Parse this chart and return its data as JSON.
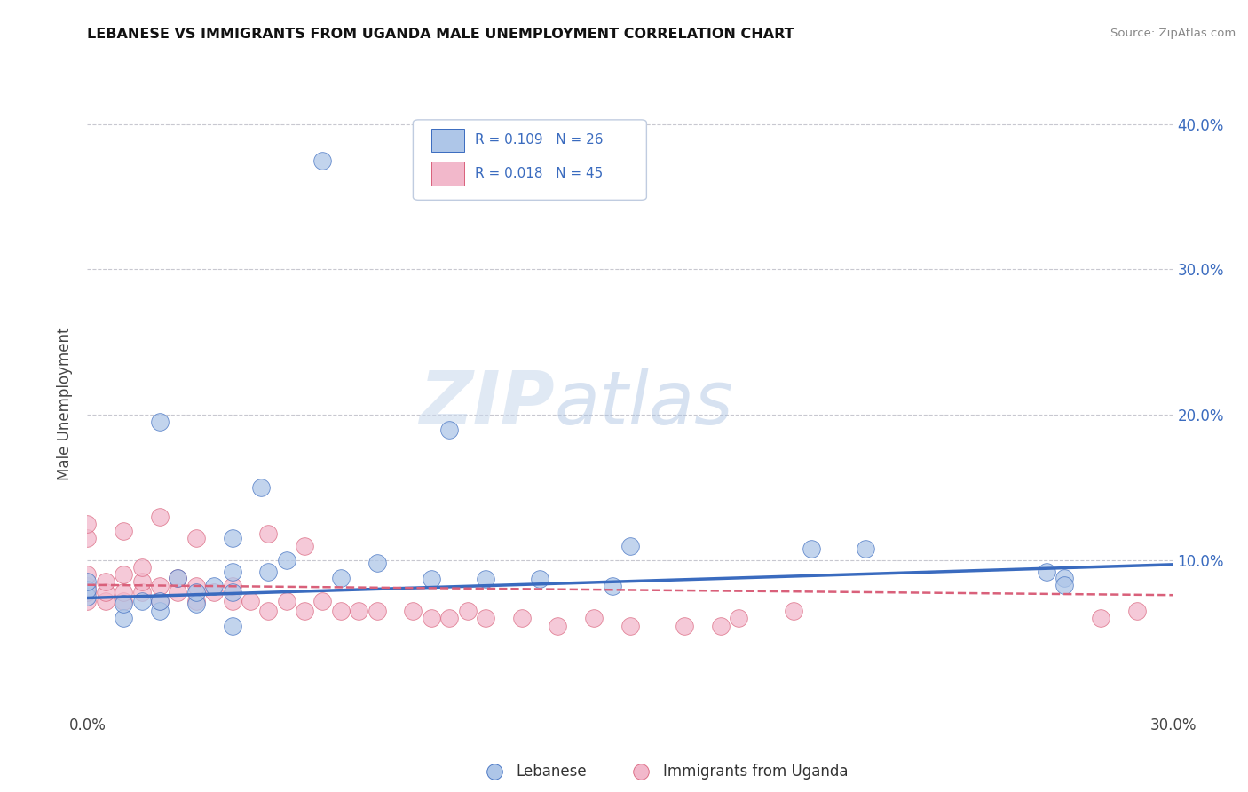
{
  "title": "LEBANESE VS IMMIGRANTS FROM UGANDA MALE UNEMPLOYMENT CORRELATION CHART",
  "source": "Source: ZipAtlas.com",
  "ylabel": "Male Unemployment",
  "xlim": [
    0.0,
    0.3
  ],
  "ylim": [
    -0.005,
    0.42
  ],
  "ytick_vals": [
    0.1,
    0.2,
    0.3,
    0.4
  ],
  "ytick_labels": [
    "10.0%",
    "20.0%",
    "30.0%",
    "40.0%"
  ],
  "watermark": "ZIPatlas",
  "color_lebanese": "#aec6e8",
  "color_uganda": "#f2b8cb",
  "color_line_lebanese": "#3a6bbf",
  "color_line_uganda": "#d9607a",
  "lebanese_x": [
    0.0,
    0.0,
    0.0,
    0.01,
    0.01,
    0.015,
    0.02,
    0.02,
    0.025,
    0.03,
    0.03,
    0.035,
    0.04,
    0.04,
    0.048,
    0.05,
    0.055,
    0.07,
    0.08,
    0.095,
    0.1,
    0.11,
    0.125,
    0.145,
    0.2,
    0.265
  ],
  "lebanese_y": [
    0.075,
    0.08,
    0.085,
    0.06,
    0.07,
    0.072,
    0.065,
    0.072,
    0.088,
    0.07,
    0.078,
    0.082,
    0.078,
    0.092,
    0.15,
    0.092,
    0.1,
    0.088,
    0.098,
    0.087,
    0.19,
    0.087,
    0.087,
    0.082,
    0.108,
    0.092
  ],
  "uganda_x": [
    0.0,
    0.0,
    0.0,
    0.0,
    0.005,
    0.005,
    0.005,
    0.01,
    0.01,
    0.01,
    0.015,
    0.015,
    0.015,
    0.02,
    0.02,
    0.025,
    0.025,
    0.03,
    0.03,
    0.035,
    0.04,
    0.04,
    0.045,
    0.05,
    0.055,
    0.06,
    0.065,
    0.07,
    0.075,
    0.08,
    0.09,
    0.095,
    0.1,
    0.105,
    0.11,
    0.12,
    0.13,
    0.14,
    0.15,
    0.165,
    0.175,
    0.18,
    0.195,
    0.28,
    0.29
  ],
  "uganda_y": [
    0.072,
    0.078,
    0.082,
    0.09,
    0.072,
    0.078,
    0.085,
    0.072,
    0.078,
    0.09,
    0.078,
    0.085,
    0.095,
    0.072,
    0.082,
    0.078,
    0.088,
    0.072,
    0.082,
    0.078,
    0.072,
    0.082,
    0.072,
    0.065,
    0.072,
    0.065,
    0.072,
    0.065,
    0.065,
    0.065,
    0.065,
    0.06,
    0.06,
    0.065,
    0.06,
    0.06,
    0.055,
    0.06,
    0.055,
    0.055,
    0.055,
    0.06,
    0.065,
    0.06,
    0.065
  ],
  "lebanese_extra_x": [
    0.065,
    0.02,
    0.04,
    0.04,
    0.15,
    0.215,
    0.27,
    0.27
  ],
  "lebanese_extra_y": [
    0.375,
    0.195,
    0.115,
    0.055,
    0.11,
    0.108,
    0.088,
    0.083
  ],
  "uganda_extra_x": [
    0.0,
    0.0,
    0.01,
    0.02,
    0.03,
    0.05,
    0.06
  ],
  "uganda_extra_y": [
    0.115,
    0.125,
    0.12,
    0.13,
    0.115,
    0.118,
    0.11
  ],
  "leb_trend_x": [
    0.0,
    0.3
  ],
  "leb_trend_y": [
    0.074,
    0.097
  ],
  "uga_trend_x": [
    0.0,
    0.3
  ],
  "uga_trend_y": [
    0.083,
    0.076
  ],
  "grid_color": "#c8c8d0",
  "legend_facecolor": "#f0f4fa",
  "legend_edgecolor": "#c0cce0"
}
